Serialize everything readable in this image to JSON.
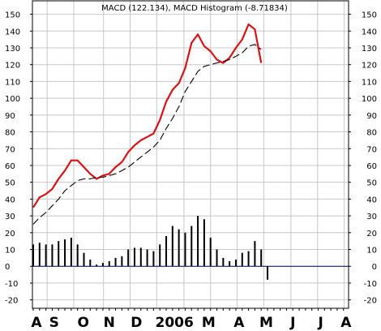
{
  "chart_data": {
    "type": "line",
    "title": "MACD (122.134), MACD Histogram (-8.71834)",
    "ylim": [
      -25,
      158
    ],
    "yticks": [
      -20,
      -10,
      0,
      10,
      20,
      30,
      40,
      50,
      60,
      70,
      80,
      90,
      100,
      110,
      120,
      130,
      140,
      150
    ],
    "grid": true,
    "x_labels": [
      {
        "label": "A",
        "pos": 0.5
      },
      {
        "label": "S",
        "pos": 3.3
      },
      {
        "label": "O",
        "pos": 7.9
      },
      {
        "label": "N",
        "pos": 12.0
      },
      {
        "label": "D",
        "pos": 16.3
      },
      {
        "label": "2006",
        "pos": 22.3
      },
      {
        "label": "M",
        "pos": 27.7
      },
      {
        "label": "A",
        "pos": 32.5
      },
      {
        "label": "M",
        "pos": 36.8
      },
      {
        "label": "J",
        "pos": 41.0
      },
      {
        "label": "J",
        "pos": 45.4
      },
      {
        "label": "A",
        "pos": 49.4
      }
    ],
    "month_lines": [
      2.2,
      6.4,
      11.1,
      15.3,
      19.5,
      23.8,
      28.0,
      32.2,
      36.4,
      40.7,
      44.9,
      49.1
    ],
    "x_range": [
      0,
      49.8
    ],
    "series": [
      {
        "values": [
          35,
          41,
          43,
          46,
          52,
          57,
          63,
          63,
          59,
          55,
          52,
          54,
          55,
          59,
          62,
          68,
          72,
          75,
          77,
          79,
          87,
          98,
          105,
          109,
          118,
          133,
          138,
          131,
          128,
          123,
          121,
          124,
          130,
          135,
          144,
          141,
          121
        ],
        "color": "#dd1111",
        "style": "solid"
      },
      {
        "values": [
          25,
          29,
          32,
          36,
          40,
          45,
          48,
          51,
          52,
          52,
          53,
          53,
          54,
          55,
          57,
          59,
          62,
          65,
          68,
          71,
          75,
          82,
          88,
          95,
          104,
          110,
          116,
          119,
          120,
          121,
          122,
          123,
          125,
          127,
          131,
          132,
          129
        ],
        "color": "#000000",
        "style": "dashed"
      }
    ],
    "histogram": {
      "values": [
        13,
        14,
        13,
        13,
        15,
        16,
        17,
        13,
        8,
        4,
        1,
        2,
        3,
        5,
        6,
        10,
        11,
        11,
        10,
        9,
        13,
        18,
        24,
        22,
        20,
        24,
        30,
        28,
        17,
        10,
        5,
        3,
        4,
        8,
        9,
        15,
        10,
        -8
      ],
      "color": "#000000"
    },
    "zero_line_color": "#000080"
  }
}
